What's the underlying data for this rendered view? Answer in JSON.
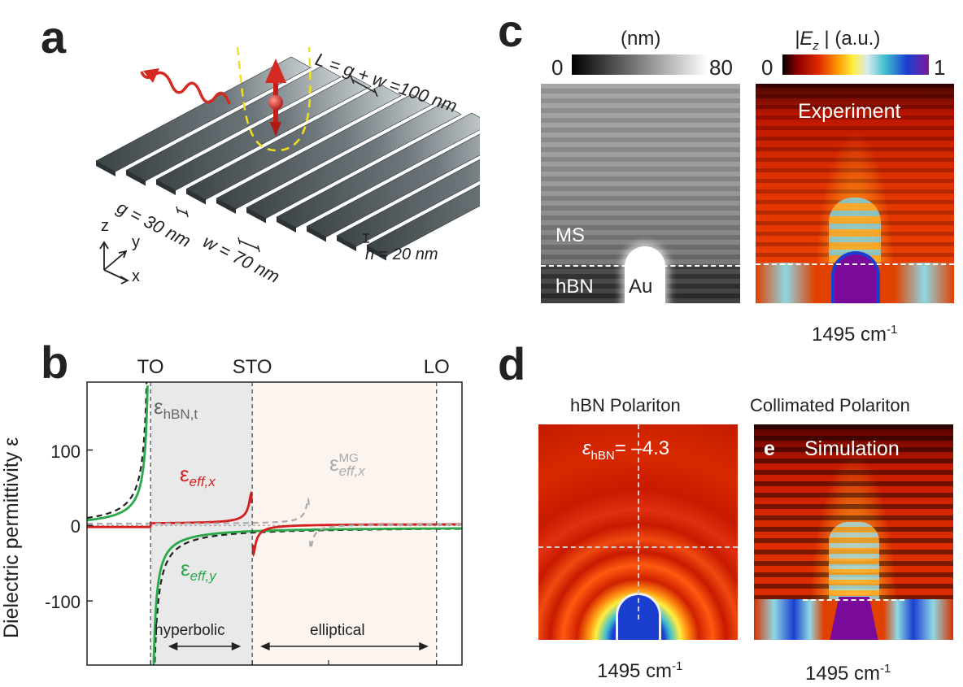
{
  "panels": {
    "a": "a",
    "b": "b",
    "c": "c",
    "d": "d",
    "e": "e"
  },
  "panel_a": {
    "period_label": "L = g + w =100 nm",
    "gap_label": "g = 30 nm",
    "width_label": "w = 70 nm",
    "height_label": "h = 20 nm",
    "axis_z": "z",
    "axis_y": "y",
    "axis_x": "x",
    "colors": {
      "grating": "#5a6266",
      "dipole": "#d42a22",
      "field": "#f2e01a"
    }
  },
  "panel_c": {
    "height_unit": "(nm)",
    "height_min": "0",
    "height_max": "80",
    "field_label": "|E",
    "field_sub": "z",
    "field_unit": " | (a.u.)",
    "field_min": "0",
    "field_max": "1",
    "label_ms": "MS",
    "label_hbn": "hBN",
    "label_au": "Au",
    "label_experiment": "Experiment",
    "frequency": "1495 cm",
    "frequency_exp": "-1"
  },
  "panel_d": {
    "title_left": "hBN Polariton",
    "title_right": "Collimated Polariton",
    "eps_symbol": "ε",
    "eps_sub": "hBN",
    "eps_value": "= –4.3",
    "label_simulation": "Simulation",
    "frequency_left": "1495 cm",
    "frequency_right": "1495 cm",
    "frequency_exp": "-1"
  },
  "chart_data": {
    "type": "line",
    "ylabel": "Dielectric permittivity ε",
    "xlabel": "",
    "ylim": [
      -185,
      190
    ],
    "yticks": [
      100,
      0,
      -100
    ],
    "ytick_labels": [
      "100",
      "0",
      "-100"
    ],
    "x_markers": [
      "TO",
      "STO",
      "LO"
    ],
    "x_marker_positions": [
      1.0,
      2.6,
      5.5
    ],
    "xlim": [
      0,
      5.9
    ],
    "regions": [
      {
        "name": "hyperbolic",
        "x": [
          1.0,
          2.6
        ],
        "color": "#e9e9e9"
      },
      {
        "name": "elliptical",
        "x": [
          2.6,
          5.5
        ],
        "color": "#fcf4ee"
      }
    ],
    "series": [
      {
        "name": "εhBN,t",
        "color": "#222222",
        "style": "dashed",
        "pole": 1.0,
        "amp": 12
      },
      {
        "name": "εeff,y",
        "color": "#2aa84a",
        "style": "solid",
        "pole": 1.0,
        "amp": 9
      },
      {
        "name": "εeff,x",
        "color": "#d41f1f",
        "style": "solid",
        "pole": 2.6,
        "amp": 1.6
      },
      {
        "name": "εeff,x MG",
        "color": "#aaaaaa",
        "style": "dashed",
        "pole": 3.5,
        "amp": 1.3
      }
    ],
    "series_labels": {
      "hbn_t_main": "ε",
      "hbn_t_sub": "hBN,t",
      "eff_x_main": "ε",
      "eff_x_sub": "eff,x",
      "eff_y_main": "ε",
      "eff_y_sub": "eff,y",
      "mg_main": "ε",
      "mg_sub": "eff,x",
      "mg_sup": "MG"
    },
    "annotations": {
      "hyperbolic": "hyperbolic",
      "elliptical": "elliptical"
    }
  }
}
